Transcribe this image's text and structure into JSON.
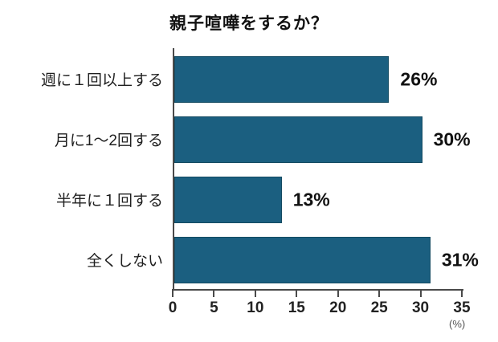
{
  "chart_data": {
    "type": "bar",
    "orientation": "horizontal",
    "title": "親子喧嘩をするか？",
    "categories": [
      "週に１回以上する",
      "月に1〜2回する",
      "半年に１回する",
      "全くしない"
    ],
    "values": [
      26,
      30,
      13,
      31
    ],
    "value_labels": [
      "26%",
      "30%",
      "13%",
      "31%"
    ],
    "x_ticks": [
      0,
      5,
      10,
      15,
      20,
      25,
      30,
      35
    ],
    "xlim": [
      0,
      35
    ],
    "unit_label": "(%)",
    "xlabel": "",
    "ylabel": "",
    "grid": false,
    "legend": false,
    "bar_color": "#1b5f80",
    "bar_border_color": "#134a61",
    "axis_color": "#4a4a4a",
    "text_color": "#111111"
  }
}
